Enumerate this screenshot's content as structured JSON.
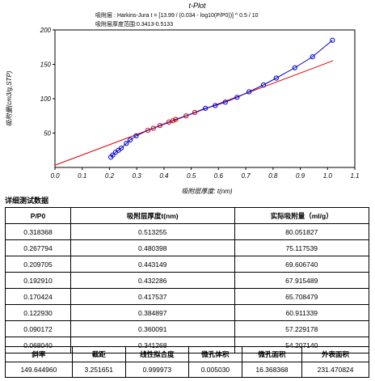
{
  "chart_data": {
    "type": "scatter",
    "title": "t-Plot",
    "subtitle_lines": [
      "吸附层 : Harkins-Jura t = [13.99 / (0.034 - log10(P/P0))] ^ 0.5 / 10",
      "吸附层厚度范围:0.3413-0.5133"
    ],
    "xlabel": "吸附层厚度: t(nm)",
    "ylabel": "吸附量(cm3/g,STP)",
    "xlim": [
      0.0,
      1.1
    ],
    "ylim": [
      0,
      200
    ],
    "x_ticks": [
      "0.0",
      "0.1",
      "0.2",
      "0.3",
      "0.4",
      "0.5",
      "0.6",
      "0.7",
      "0.8",
      "0.9",
      "1.0",
      "1.1"
    ],
    "y_ticks": [
      "50",
      "100",
      "150",
      "200"
    ],
    "colors": {
      "points": "#0000cc",
      "fit_points": "#cc0000",
      "fit_line": "#dd0000"
    },
    "series": [
      {
        "role": "blue-points",
        "x": [
          0.205,
          0.212,
          0.222,
          0.233,
          0.243,
          0.262,
          0.276,
          0.298,
          0.88,
          0.945,
          1.018
        ],
        "y": [
          15,
          18,
          22,
          25,
          28,
          35,
          40,
          46,
          145,
          161,
          185
        ]
      },
      {
        "role": "red-points",
        "x": [
          0.341,
          0.361,
          0.385,
          0.418,
          0.433,
          0.443,
          0.481,
          0.513
        ],
        "y": [
          54,
          57,
          61,
          66,
          68,
          70,
          75,
          80
        ]
      },
      {
        "role": "blue-points-upper",
        "x": [
          0.552,
          0.588,
          0.625,
          0.668,
          0.712,
          0.765,
          0.812
        ],
        "y": [
          86,
          90,
          95,
          102,
          110,
          120,
          130
        ]
      }
    ],
    "fit_line": {
      "x": [
        0.0,
        1.02
      ],
      "y": [
        3.25,
        155.2
      ]
    }
  },
  "table": {
    "section_title": "详细测试数据",
    "headers": [
      "P/P0",
      "吸附层厚度t(nm)",
      "实际吸附量（ml/g）"
    ],
    "rows": [
      [
        "0.318368",
        "0.513255",
        "80.051827"
      ],
      [
        "0.267794",
        "0.480398",
        "75.117539"
      ],
      [
        "0.209705",
        "0.443149",
        "69.606740"
      ],
      [
        "0.192910",
        "0.432286",
        "67.915489"
      ],
      [
        "0.170424",
        "0.417537",
        "65.708479"
      ],
      [
        "0.122930",
        "0.384897",
        "60.911339"
      ],
      [
        "0.090172",
        "0.360091",
        "57.229178"
      ],
      [
        "0.068040",
        "0.341268",
        "54.207140"
      ]
    ]
  },
  "summary": {
    "labels": [
      "斜率",
      "截距",
      "线性拟合度",
      "微孔体积",
      "微孔面积",
      "外表面积"
    ],
    "values": [
      "149.644960",
      "3.251651",
      "0.999973",
      "0.005030",
      "16.368368",
      "231.470824"
    ]
  }
}
